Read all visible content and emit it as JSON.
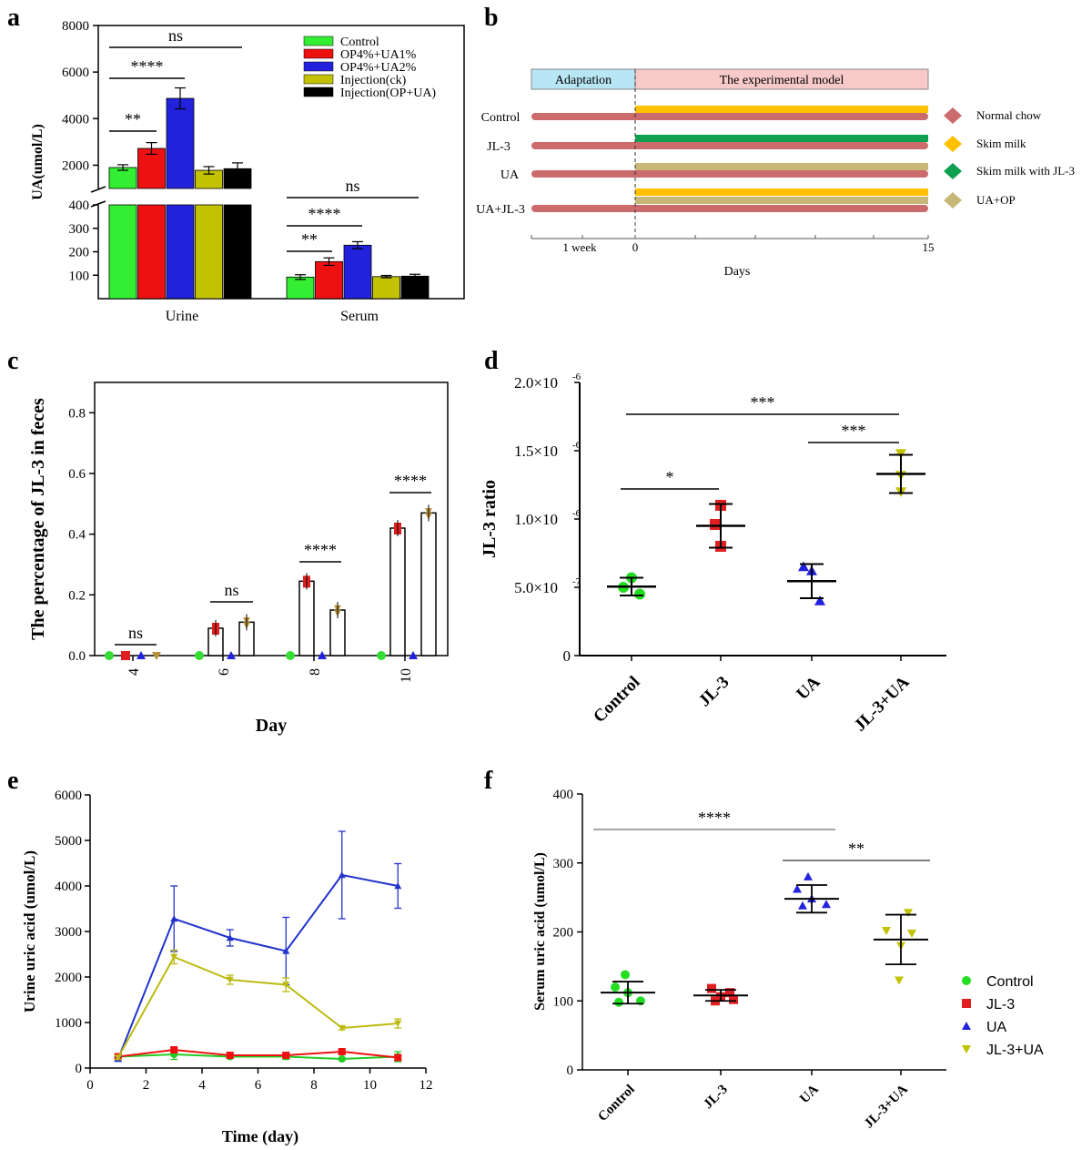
{
  "panel_letters": [
    "a",
    "b",
    "c",
    "d",
    "e",
    "f"
  ],
  "chart_data": [
    {
      "panel": "a",
      "type": "bar",
      "ylabel": "UA(umol/L)",
      "categories": [
        "Urine",
        "Serum"
      ],
      "series": [
        {
          "name": "Control",
          "color": "#33ee33",
          "values": [
            1900,
            92
          ],
          "err": [
            120,
            10
          ]
        },
        {
          "name": "OP4%+UA1%",
          "color": "#ee1111",
          "values": [
            2720,
            158
          ],
          "err": [
            250,
            16
          ]
        },
        {
          "name": "OP4%+UA2%",
          "color": "#2222dd",
          "values": [
            4870,
            228
          ],
          "err": [
            450,
            15
          ]
        },
        {
          "name": "Injection(ck)",
          "color": "#c2c200",
          "values": [
            1780,
            94
          ],
          "err": [
            160,
            5
          ]
        },
        {
          "name": "Injection(OP+UA)",
          "color": "#000000",
          "values": [
            1850,
            96
          ],
          "err": [
            250,
            8
          ]
        }
      ],
      "ylim_upper": [
        1000,
        8000
      ],
      "ylim_lower": [
        0,
        400
      ],
      "yticks_upper": [
        "2000",
        "4000",
        "6000",
        "8000"
      ],
      "yticks_lower": [
        "100",
        "200",
        "300",
        "400"
      ],
      "significance": [
        "ns",
        "****",
        "**",
        "ns",
        "****",
        "**"
      ]
    },
    {
      "panel": "b",
      "type": "timeline",
      "header_left": "Adaptation",
      "header_right": "The experimental model",
      "groups": [
        "Control",
        "JL-3",
        "UA",
        "UA+JL-3"
      ],
      "legend": [
        {
          "name": "Normal chow",
          "color": "#cc6b6b"
        },
        {
          "name": "Skim milk",
          "color": "#ffc000"
        },
        {
          "name": "Skim milk with JL-3",
          "color": "#0fa050"
        },
        {
          "name": "UA+OP",
          "color": "#c8b878"
        }
      ],
      "axis_labels": [
        "1 week",
        "0",
        "15"
      ],
      "xlabel": "Days"
    },
    {
      "panel": "c",
      "type": "bar",
      "ylabel": "The percentage of JL-3 in feces",
      "xlabel": "Day",
      "categories": [
        "4",
        "6",
        "8",
        "10"
      ],
      "ylim": [
        0,
        0.9
      ],
      "yticks": [
        "0.0",
        "0.2",
        "0.4",
        "0.6",
        "0.8"
      ],
      "series": [
        {
          "name": "Control",
          "color": "#33dd33",
          "values": [
            0,
            0,
            0,
            0
          ]
        },
        {
          "name": "JL-3",
          "color": "#e02020",
          "values": [
            0,
            0.09,
            0.245,
            0.42
          ]
        },
        {
          "name": "UA",
          "color": "#2222dd",
          "values": [
            0,
            0,
            0,
            0
          ]
        },
        {
          "name": "JL-3+UA",
          "color": "#b8913a",
          "values": [
            0,
            0.11,
            0.15,
            0.47
          ]
        }
      ],
      "significance": [
        "ns",
        "ns",
        "****",
        "****"
      ]
    },
    {
      "panel": "d",
      "type": "scatter",
      "ylabel": "JL-3 ratio",
      "categories": [
        "Control",
        "JL-3",
        "UA",
        "JL-3+UA"
      ],
      "ylim": [
        0,
        2e-06
      ],
      "yticks": [
        "0",
        "5.0×10",
        "1.0×10",
        "1.5×10",
        "2.0×10"
      ],
      "ytick_exps": [
        "",
        "-7",
        "-6",
        "-6",
        "-6"
      ],
      "series": [
        {
          "name": "Control",
          "color": "#22dd22",
          "marker": "circle",
          "points": [
            5.7e-07,
            5e-07,
            4.5e-07
          ],
          "mean": 5.05e-07,
          "sd": 6.5e-08
        },
        {
          "name": "JL-3",
          "color": "#e02020",
          "marker": "square",
          "points": [
            1.1e-06,
            9.6e-07,
            8e-07
          ],
          "mean": 9.5e-07,
          "sd": 1.6e-07
        },
        {
          "name": "UA",
          "color": "#2222dd",
          "marker": "triangle",
          "points": [
            6.5e-07,
            6.2e-07,
            4e-07
          ],
          "mean": 5.45e-07,
          "sd": 1.25e-07
        },
        {
          "name": "JL-3+UA",
          "color": "#c2c200",
          "marker": "tri-down",
          "points": [
            1.48e-06,
            1.32e-06,
            1.2e-06
          ],
          "mean": 1.33e-06,
          "sd": 1.4e-07
        }
      ],
      "significance": [
        "*",
        "***",
        "***"
      ]
    },
    {
      "panel": "e",
      "type": "line",
      "ylabel": "Urine uric acid (umol/L)",
      "xlabel": "Time (day)",
      "xlim": [
        0,
        12
      ],
      "ylim": [
        0,
        6000
      ],
      "xticks": [
        "0",
        "2",
        "4",
        "6",
        "8",
        "10",
        "12"
      ],
      "yticks": [
        "0",
        "1000",
        "2000",
        "3000",
        "4000",
        "5000",
        "6000"
      ],
      "x": [
        1,
        3,
        5,
        7,
        9,
        11
      ],
      "series": [
        {
          "name": "Control",
          "color": "#22cc22",
          "values": [
            250,
            300,
            250,
            250,
            200,
            250
          ],
          "err": [
            40,
            110,
            40,
            60,
            30,
            110
          ]
        },
        {
          "name": "JL-3",
          "color": "#ee1111",
          "values": [
            250,
            400,
            280,
            280,
            360,
            230
          ],
          "err": [
            40,
            50,
            40,
            40,
            40,
            60
          ]
        },
        {
          "name": "UA",
          "color": "#2233cc",
          "values": [
            200,
            3280,
            2860,
            2570,
            4240,
            4000
          ],
          "err": [
            50,
            720,
            180,
            740,
            960,
            490
          ]
        },
        {
          "name": "JL-3+UA",
          "color": "#bbbb11",
          "values": [
            230,
            2440,
            1940,
            1830,
            880,
            980
          ],
          "err": [
            40,
            150,
            100,
            150,
            40,
            100
          ]
        }
      ]
    },
    {
      "panel": "f",
      "type": "scatter",
      "ylabel": "Serum uric acid (umol/L)",
      "categories": [
        "Control",
        "JL-3",
        "UA",
        "JL-3+UA"
      ],
      "ylim": [
        0,
        400
      ],
      "yticks": [
        "0",
        "100",
        "200",
        "300",
        "400"
      ],
      "series": [
        {
          "name": "Control",
          "color": "#22dd22",
          "marker": "circle",
          "points": [
            138,
            120,
            112,
            100,
            98
          ],
          "mean": 112,
          "sd": 16
        },
        {
          "name": "JL-3",
          "color": "#e02020",
          "marker": "square",
          "points": [
            118,
            112,
            106,
            102,
            100
          ],
          "mean": 108,
          "sd": 8
        },
        {
          "name": "UA",
          "color": "#2222dd",
          "marker": "triangle",
          "points": [
            280,
            262,
            248,
            240,
            238
          ],
          "mean": 248,
          "sd": 20
        },
        {
          "name": "JL-3+UA",
          "color": "#c2c200",
          "marker": "tri-down",
          "points": [
            228,
            202,
            198,
            180,
            130
          ],
          "mean": 189,
          "sd": 36
        }
      ],
      "significance": [
        "****",
        "**"
      ]
    }
  ]
}
